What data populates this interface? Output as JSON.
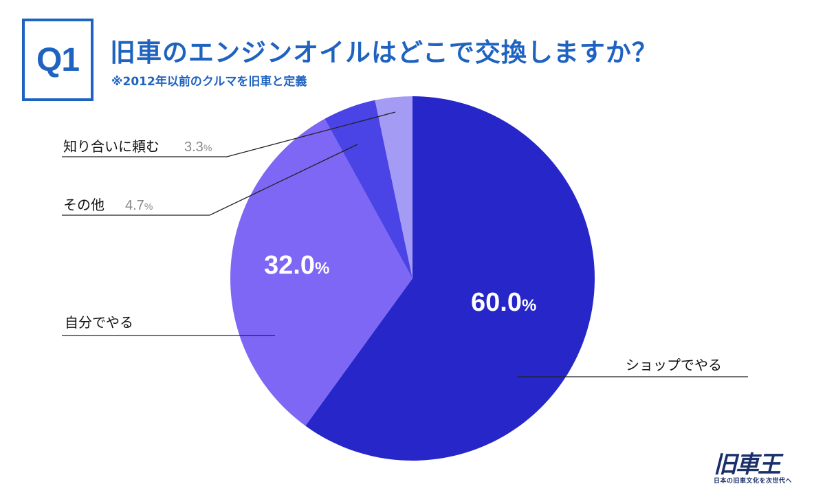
{
  "header": {
    "question_label": "Q1",
    "title": "旧車のエンジンオイルはどこで交換しますか？",
    "subtitle": "※2012年以前のクルマを旧車と定義"
  },
  "chart_data": {
    "type": "pie",
    "start": "12 o'clock",
    "direction": "clockwise",
    "percent_unit": "%",
    "slices": [
      {
        "label": "ショップでやる",
        "value": 60.0,
        "value_text": "60.0",
        "color": "#2626c9"
      },
      {
        "label": "自分でやる",
        "value": 32.0,
        "value_text": "32.0",
        "color": "#7d67f4"
      },
      {
        "label": "その他",
        "value": 4.7,
        "value_text": "4.7",
        "color": "#4a43e6"
      },
      {
        "label": "知り合いに頼む",
        "value": 3.3,
        "value_text": "3.3",
        "color": "#a49bf5"
      }
    ]
  },
  "logo": {
    "main": "旧車王",
    "tagline": "日本の旧車文化を次世代へ"
  }
}
